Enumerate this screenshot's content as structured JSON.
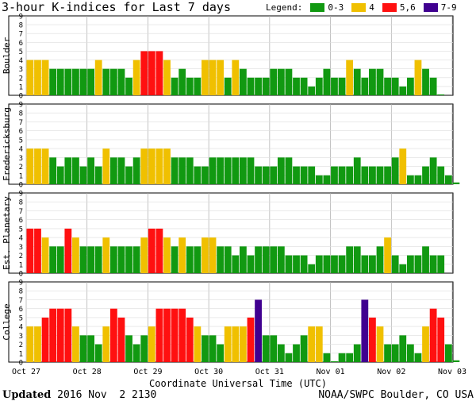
{
  "title": "3-hour K-indices for Last 7 days",
  "legend": {
    "label": "Legend:",
    "items": [
      {
        "label": "0-3",
        "color": "#119911"
      },
      {
        "label": "4",
        "color": "#f0c000"
      },
      {
        "label": "5,6",
        "color": "#ff1010"
      },
      {
        "label": "7-9",
        "color": "#400090"
      }
    ]
  },
  "footer": {
    "updated_label": "Updated",
    "updated_value": " 2016 Nov  2 2130",
    "credit": "NOAA/SWPC Boulder, CO USA"
  },
  "chart_data": {
    "type": "bar",
    "xlabel": "Coordinate Universal Time (UTC)",
    "x_ticks": [
      "Oct 27",
      "Oct 28",
      "Oct 29",
      "Oct 30",
      "Oct 31",
      "Nov 01",
      "Nov 02",
      "Nov 03"
    ],
    "ylim": [
      0,
      9
    ],
    "y_ticks": [
      0,
      1,
      2,
      3,
      4,
      5,
      6,
      7,
      8,
      9
    ],
    "series": [
      {
        "name": "Boulder",
        "values": [
          4,
          4,
          4,
          3,
          3,
          3,
          3,
          3,
          3,
          4,
          3,
          3,
          3,
          2,
          4,
          5,
          5,
          5,
          4,
          2,
          3,
          2,
          2,
          4,
          4,
          4,
          2,
          4,
          3,
          2,
          2,
          2,
          3,
          3,
          3,
          2,
          2,
          1,
          2,
          3,
          2,
          2,
          4,
          3,
          2,
          3,
          3,
          2,
          2,
          1,
          2,
          4,
          3,
          2,
          0.1
        ]
      },
      {
        "name": "Fredericksburg",
        "values": [
          4,
          4,
          4,
          3,
          2,
          3,
          3,
          2,
          3,
          2,
          4,
          3,
          3,
          2,
          3,
          4,
          4,
          4,
          4,
          3,
          3,
          3,
          2,
          2,
          3,
          3,
          3,
          3,
          3,
          3,
          2,
          2,
          2,
          3,
          3,
          2,
          2,
          2,
          1,
          1,
          2,
          2,
          2,
          3,
          2,
          2,
          2,
          2,
          3,
          4,
          1,
          1,
          2,
          3,
          2,
          1,
          0.2
        ]
      },
      {
        "name": "Est. Planetary",
        "values": [
          5,
          5,
          4,
          3,
          3,
          5,
          4,
          3,
          3,
          3,
          4,
          3,
          3,
          3,
          3,
          4,
          5,
          5,
          4,
          3,
          4,
          3,
          3,
          4,
          4,
          3,
          3,
          2,
          3,
          2,
          3,
          3,
          3,
          3,
          2,
          2,
          2,
          1,
          2,
          2,
          2,
          2,
          3,
          3,
          2,
          2,
          3,
          4,
          2,
          1,
          2,
          2,
          3,
          2,
          2
        ]
      },
      {
        "name": "College",
        "values": [
          4,
          4,
          5,
          6,
          6,
          6,
          4,
          3,
          3,
          2,
          4,
          6,
          5,
          3,
          2,
          3,
          4,
          6,
          6,
          6,
          6,
          5,
          4,
          3,
          3,
          2,
          4,
          4,
          4,
          5,
          7,
          3,
          3,
          2,
          1,
          2,
          3,
          4,
          4,
          1,
          0.1,
          1,
          1,
          2,
          7,
          5,
          4,
          2,
          2,
          3,
          2,
          1,
          4,
          6,
          5,
          2,
          0.2
        ]
      }
    ],
    "color_scale": [
      {
        "range": "0-3",
        "color": "#119911"
      },
      {
        "range": "4",
        "color": "#f0c000"
      },
      {
        "range": "5,6",
        "color": "#ff1010"
      },
      {
        "range": "7-9",
        "color": "#400090"
      }
    ]
  }
}
